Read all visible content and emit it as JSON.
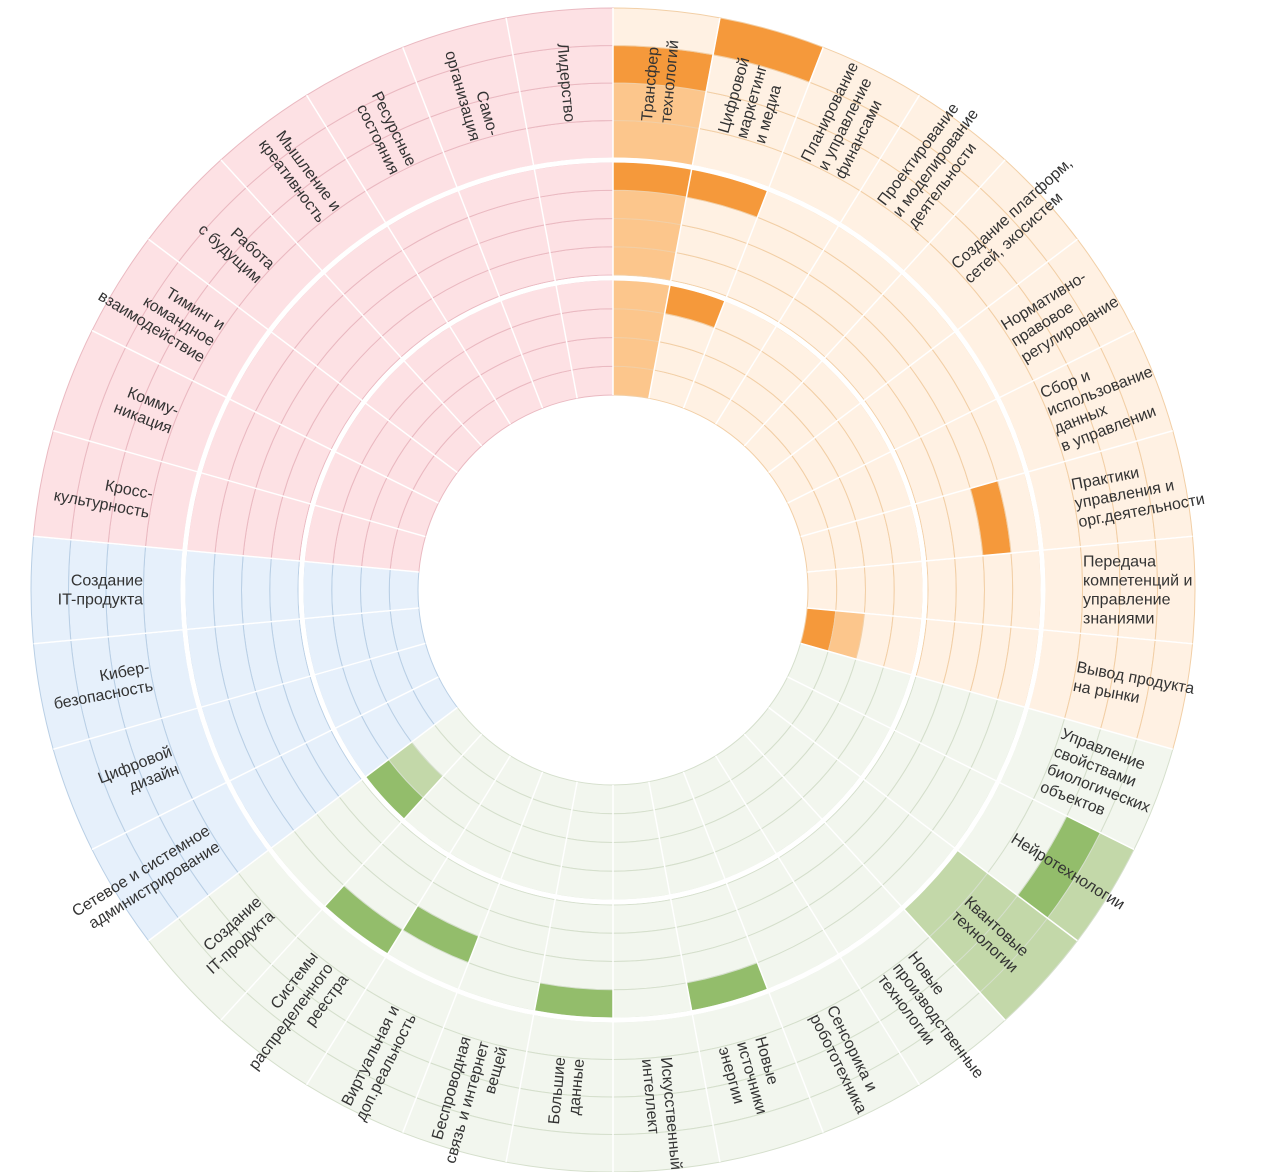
{
  "chart_data": {
    "type": "radial-heatmap",
    "rings": 3,
    "levels_per_ring": 4,
    "colors": {
      "pink": {
        "base": "#fde1e4",
        "line": "#eab9c1",
        "mid": "#f39aa5",
        "dark": "#ec1c2e"
      },
      "orange": {
        "base": "#fff1e3",
        "line": "#f2cfa6",
        "mid": "#fcc68c",
        "dark": "#f5993b"
      },
      "green": {
        "base": "#f2f6ee",
        "line": "#d5dfcc",
        "mid": "#c3d8a9",
        "dark": "#93bd6b"
      },
      "blue": {
        "base": "#e6f0fb",
        "line": "#b9cfe5",
        "mid": "#7eb0dc",
        "dark": "#2771b8"
      }
    },
    "segments": [
      {
        "label": "Трансфер\nтехнологий",
        "group": "orange",
        "values": [
          [
            1,
            1,
            2,
            0
          ],
          [
            1,
            1,
            1,
            2
          ],
          [
            1,
            1,
            1,
            1
          ]
        ]
      },
      {
        "label": "Цифровой\nмаркетинг\nи медиа",
        "group": "orange",
        "values": [
          [
            0,
            0,
            0,
            2
          ],
          [
            0,
            0,
            0,
            2
          ],
          [
            0,
            0,
            0,
            2
          ]
        ]
      },
      {
        "label": "Планирование\nи управление\nфинансами",
        "group": "orange",
        "values": [
          [
            0,
            0,
            0,
            0
          ],
          [
            0,
            0,
            0,
            0
          ],
          [
            0,
            0,
            0,
            0
          ]
        ]
      },
      {
        "label": "Проектирование\nи моделирование\nдеятельности",
        "group": "orange",
        "values": [
          [
            0,
            0,
            0,
            0
          ],
          [
            0,
            0,
            0,
            0
          ],
          [
            0,
            0,
            0,
            0
          ]
        ]
      },
      {
        "label": "Создание платформ,\nсетей, экосистем",
        "group": "orange",
        "values": [
          [
            0,
            0,
            0,
            0
          ],
          [
            0,
            0,
            0,
            0
          ],
          [
            0,
            0,
            0,
            0
          ]
        ]
      },
      {
        "label": "Нормативно-\nправовое\nрегулирование",
        "group": "orange",
        "values": [
          [
            0,
            0,
            0,
            0
          ],
          [
            0,
            0,
            0,
            0
          ],
          [
            0,
            0,
            0,
            0
          ]
        ]
      },
      {
        "label": "Сбор и\nиспользование\nданных\nв управлении",
        "group": "orange",
        "values": [
          [
            0,
            0,
            0,
            0
          ],
          [
            0,
            0,
            0,
            0
          ],
          [
            0,
            0,
            0,
            0
          ]
        ]
      },
      {
        "label": "Практики\nуправления и\nорг.деятельности",
        "group": "orange",
        "values": [
          [
            0,
            0,
            0,
            0
          ],
          [
            0,
            0,
            2,
            0
          ],
          [
            0,
            0,
            0,
            0
          ]
        ]
      },
      {
        "label": "Передача\nкомпетенций и\nуправление\nзнаниями",
        "group": "orange",
        "values": [
          [
            0,
            0,
            0,
            0
          ],
          [
            0,
            0,
            0,
            0
          ],
          [
            0,
            0,
            0,
            0
          ]
        ]
      },
      {
        "label": "Вывод продукта\nна рынки",
        "group": "orange",
        "values": [
          [
            0,
            0,
            0,
            0
          ],
          [
            0,
            0,
            0,
            0
          ],
          [
            2,
            1,
            0,
            0
          ]
        ]
      },
      {
        "label": "Управление\nсвойствами\nбиологических\nобъектов",
        "group": "green",
        "values": [
          [
            0,
            0,
            0,
            0
          ],
          [
            0,
            0,
            0,
            0
          ],
          [
            0,
            0,
            0,
            0
          ]
        ]
      },
      {
        "label": "Нейротехнологии",
        "group": "green",
        "values": [
          [
            0,
            0,
            2,
            1
          ],
          [
            0,
            0,
            0,
            0
          ],
          [
            0,
            0,
            0,
            0
          ]
        ]
      },
      {
        "label": "Квантовые\nтехнологии",
        "group": "green",
        "values": [
          [
            1,
            1,
            1,
            1
          ],
          [
            0,
            0,
            0,
            0
          ],
          [
            0,
            0,
            0,
            0
          ]
        ]
      },
      {
        "label": "Новые\nпроизводственные\nтехнологии",
        "group": "green",
        "values": [
          [
            0,
            0,
            0,
            0
          ],
          [
            0,
            0,
            0,
            0
          ],
          [
            0,
            0,
            0,
            0
          ]
        ]
      },
      {
        "label": "Сенсорика и\nробототехника",
        "group": "green",
        "values": [
          [
            0,
            0,
            0,
            0
          ],
          [
            0,
            0,
            0,
            0
          ],
          [
            0,
            0,
            0,
            0
          ]
        ]
      },
      {
        "label": "Новые\nисточники\nэнергии",
        "group": "green",
        "values": [
          [
            0,
            0,
            0,
            0
          ],
          [
            0,
            0,
            0,
            2
          ],
          [
            0,
            0,
            0,
            0
          ]
        ]
      },
      {
        "label": "Искусственный\nинтеллект",
        "group": "green",
        "values": [
          [
            0,
            0,
            0,
            0
          ],
          [
            0,
            0,
            0,
            0
          ],
          [
            0,
            0,
            0,
            0
          ]
        ]
      },
      {
        "label": "Большие\nданные",
        "group": "green",
        "values": [
          [
            0,
            0,
            0,
            0
          ],
          [
            0,
            0,
            0,
            2
          ],
          [
            0,
            0,
            0,
            0
          ]
        ]
      },
      {
        "label": "Беспроводная\nсвязь и интернет\nвещей",
        "group": "green",
        "values": [
          [
            0,
            0,
            0,
            0
          ],
          [
            0,
            0,
            0,
            0
          ],
          [
            0,
            0,
            0,
            0
          ]
        ]
      },
      {
        "label": "Виртуальная и\nдоп.реальность",
        "group": "green",
        "values": [
          [
            0,
            0,
            0,
            0
          ],
          [
            0,
            0,
            2,
            0
          ],
          [
            0,
            0,
            0,
            0
          ]
        ]
      },
      {
        "label": "Системы\nраспределенного\nреестра",
        "group": "green",
        "values": [
          [
            0,
            0,
            0,
            0
          ],
          [
            0,
            0,
            0,
            2
          ],
          [
            0,
            0,
            0,
            0
          ]
        ]
      },
      {
        "label": "Создание\nIT-продукта",
        "group": "green",
        "values": [
          [
            0,
            0,
            0,
            0
          ],
          [
            0,
            0,
            0,
            0
          ],
          [
            0,
            0,
            1,
            2
          ]
        ]
      },
      {
        "label": "Сетевое и системное\nадминистрирование",
        "group": "blue",
        "values": [
          [
            0,
            0,
            0,
            0
          ],
          [
            0,
            0,
            0,
            0
          ],
          [
            0,
            0,
            0,
            0
          ]
        ]
      },
      {
        "label": "Цифровой\nдизайн",
        "group": "blue",
        "values": [
          [
            0,
            0,
            0,
            0
          ],
          [
            0,
            0,
            0,
            0
          ],
          [
            0,
            0,
            0,
            0
          ]
        ]
      },
      {
        "label": "Кибер-\nбезопасность",
        "group": "blue",
        "values": [
          [
            0,
            0,
            0,
            0
          ],
          [
            0,
            0,
            0,
            0
          ],
          [
            0,
            0,
            0,
            0
          ]
        ]
      },
      {
        "label": "Создание\nIT-продукта",
        "group": "blue",
        "values": [
          [
            0,
            0,
            0,
            0
          ],
          [
            0,
            0,
            0,
            0
          ],
          [
            0,
            0,
            0,
            0
          ]
        ]
      },
      {
        "label": "Кросс-\nкультурность",
        "group": "pink",
        "values": [
          [
            0,
            0,
            0,
            0
          ],
          [
            0,
            0,
            0,
            0
          ],
          [
            0,
            0,
            0,
            0
          ]
        ]
      },
      {
        "label": "Комму-\nникация",
        "group": "pink",
        "values": [
          [
            0,
            0,
            0,
            0
          ],
          [
            0,
            0,
            0,
            0
          ],
          [
            0,
            0,
            0,
            0
          ]
        ]
      },
      {
        "label": "Тиминг и\nкомандное\nвзаимодействие",
        "group": "pink",
        "values": [
          [
            0,
            0,
            0,
            0
          ],
          [
            0,
            0,
            0,
            0
          ],
          [
            0,
            0,
            0,
            0
          ]
        ]
      },
      {
        "label": "Работа\nс будущим",
        "group": "pink",
        "values": [
          [
            0,
            0,
            0,
            0
          ],
          [
            0,
            0,
            0,
            0
          ],
          [
            0,
            0,
            0,
            0
          ]
        ]
      },
      {
        "label": "Мышление и\nкреативность",
        "group": "pink",
        "values": [
          [
            0,
            0,
            0,
            0
          ],
          [
            0,
            0,
            0,
            0
          ],
          [
            0,
            0,
            0,
            0
          ]
        ]
      },
      {
        "label": "Ресурсные\nсостояния",
        "group": "pink",
        "values": [
          [
            0,
            0,
            0,
            0
          ],
          [
            0,
            0,
            0,
            0
          ],
          [
            0,
            0,
            0,
            0
          ]
        ]
      },
      {
        "label": "Само-\nорганизация",
        "group": "pink",
        "values": [
          [
            0,
            0,
            0,
            0
          ],
          [
            0,
            0,
            0,
            0
          ],
          [
            0,
            0,
            0,
            0
          ]
        ]
      },
      {
        "label": "Лидерство",
        "group": "pink",
        "values": [
          [
            0,
            0,
            0,
            0
          ],
          [
            0,
            0,
            0,
            0
          ],
          [
            0,
            0,
            0,
            0
          ]
        ]
      }
    ]
  }
}
